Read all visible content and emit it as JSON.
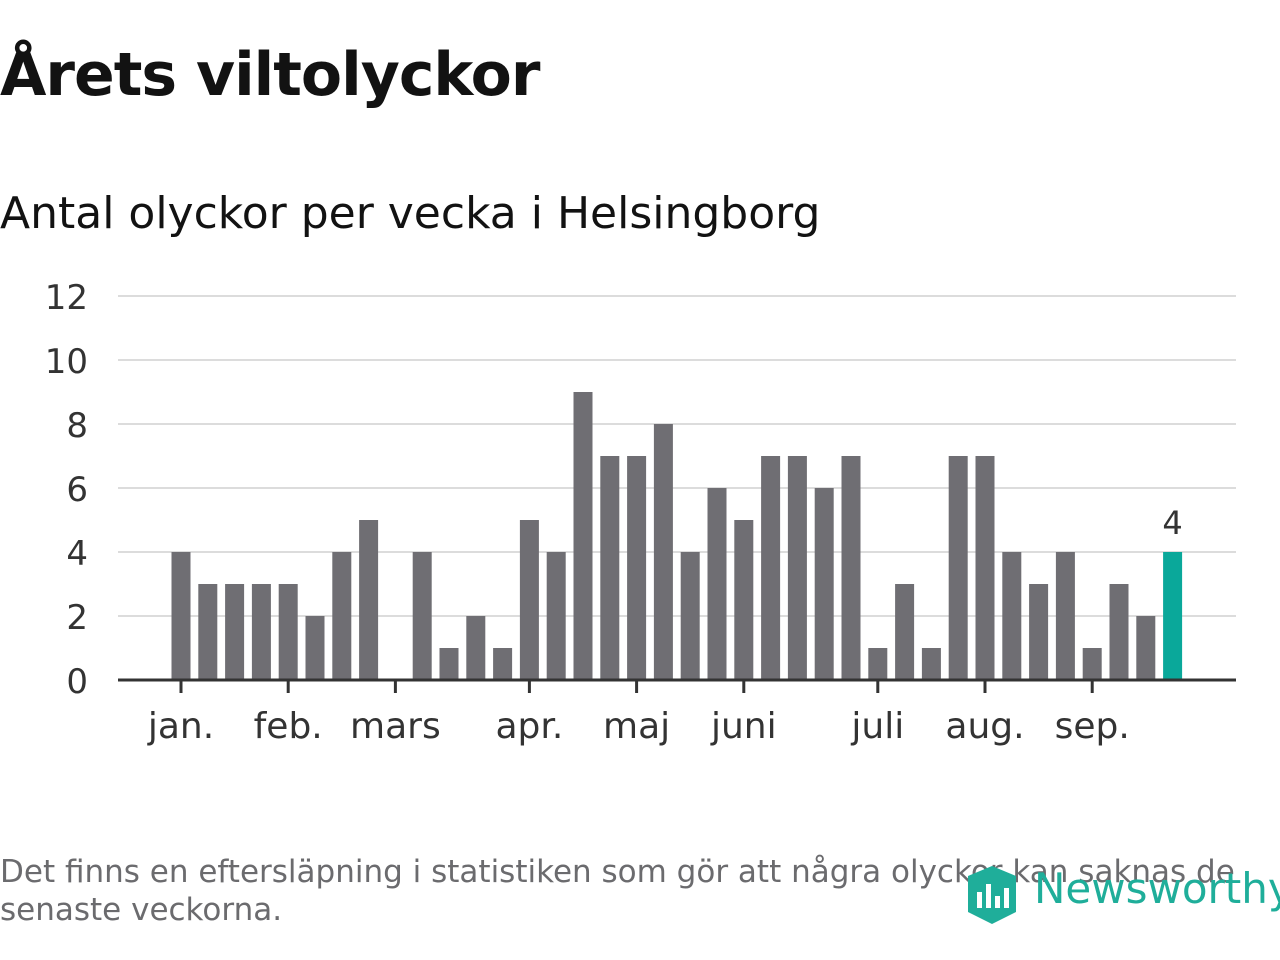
{
  "title": "Årets viltolyckor",
  "subtitle": "Antal olyckor per vecka i Helsingborg",
  "footnote": "Det finns en eftersläpning i statistiken som gör att några olyckor kan saknas de senaste veckorna.",
  "logo": {
    "text": "Newsworthy",
    "icon": "newsworthy-logo-icon",
    "color": "#1fae9a"
  },
  "chart_data": {
    "type": "bar",
    "ylim": [
      0,
      12
    ],
    "yticks": [
      "0",
      "2",
      "4",
      "6",
      "8",
      "10",
      "12"
    ],
    "ytick_values": [
      0,
      2,
      4,
      6,
      8,
      10,
      12
    ],
    "grid": true,
    "bar_color": "#6f6e73",
    "highlight_color": "#0aa89a",
    "highlight_label": "4",
    "values": [
      4,
      3,
      3,
      3,
      3,
      2,
      4,
      5,
      0,
      4,
      1,
      2,
      1,
      5,
      4,
      9,
      7,
      7,
      8,
      4,
      6,
      5,
      7,
      7,
      6,
      7,
      1,
      3,
      1,
      7,
      7,
      4,
      3,
      4,
      1,
      3,
      2,
      4
    ],
    "month_labels": [
      {
        "label": "jan.",
        "week_index": 0
      },
      {
        "label": "feb.",
        "week_index": 4
      },
      {
        "label": "mars",
        "week_index": 8
      },
      {
        "label": "apr.",
        "week_index": 13
      },
      {
        "label": "maj",
        "week_index": 17
      },
      {
        "label": "juni",
        "week_index": 21
      },
      {
        "label": "juli",
        "week_index": 26
      },
      {
        "label": "aug.",
        "week_index": 30
      },
      {
        "label": "sep.",
        "week_index": 34
      }
    ]
  }
}
